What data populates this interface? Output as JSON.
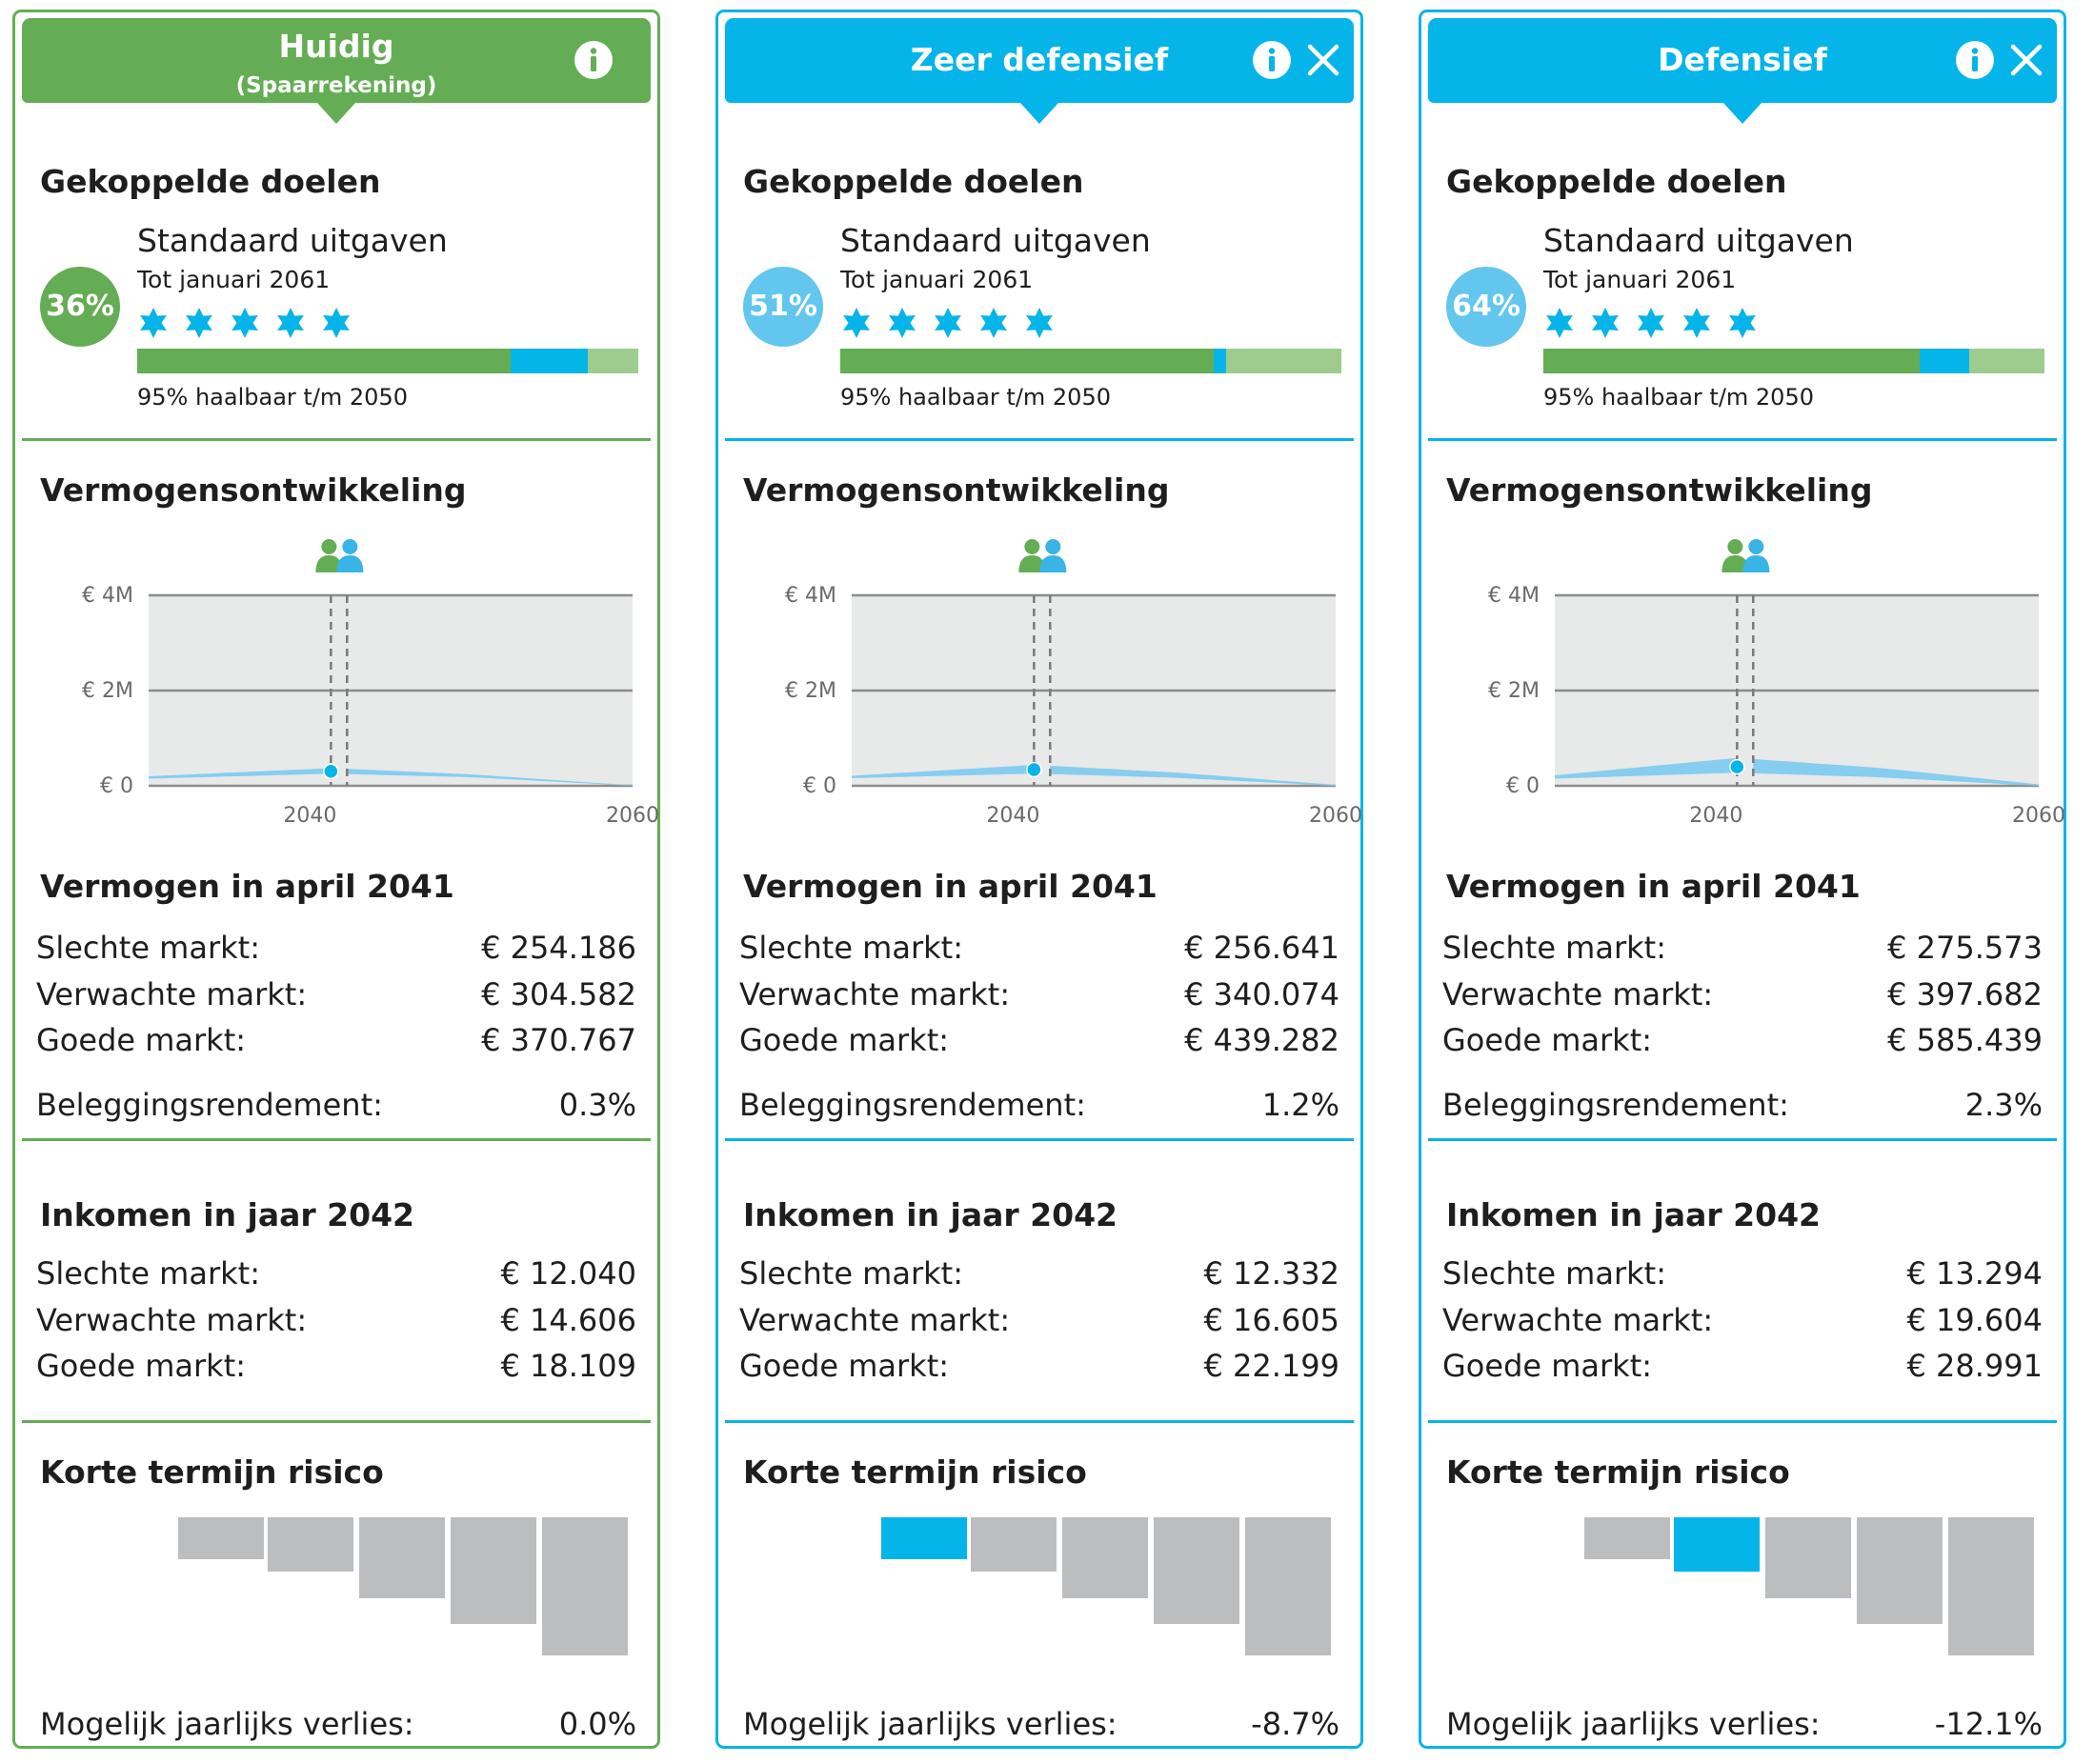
{
  "sections": {
    "goals_title": "Gekoppelde doelen",
    "wealth_title": "Vermogensontwikkeling",
    "risk_title": "Korte termijn risico"
  },
  "colors": {
    "green": "#64ad54",
    "blue": "#05b4e8",
    "light_green": "#9dcc8e",
    "chart_band": "#86cdf0",
    "chart_bg": "#e8e9e9",
    "risk_bar": "#bcbdbe"
  },
  "chart_axis": {
    "y_ticks": [
      "€ 4M",
      "€ 2M",
      "€ 0"
    ],
    "x_ticks": [
      "2040",
      "2060"
    ]
  },
  "cards": [
    {
      "title": "Huidig",
      "subtitle": "(Spaarrekening)",
      "theme": "green",
      "icons": [
        "info-icon"
      ],
      "goal": {
        "percent": "36%",
        "name": "Standaard uitgaven",
        "date": "Tot januari 2061",
        "stars": 5,
        "bar": {
          "green": 0.745,
          "blue": 0.155
        },
        "feasible": "95% haalbaar t/m 2050"
      },
      "chart_data": {
        "type": "area",
        "ylim": [
          0,
          4000000
        ],
        "xlim": [
          2030,
          2060
        ],
        "y_ticks": [
          "€ 4M",
          "€ 2M",
          "€ 0"
        ],
        "x_ticks": [
          "2040",
          "2060"
        ],
        "marker_x": 2041.3,
        "marker2_x": 2042.3,
        "marker_value": 304582,
        "band": [
          {
            "x": 2030,
            "lo": 150000,
            "hi": 200000
          },
          {
            "x": 2041.3,
            "lo": 254186,
            "hi": 370767
          },
          {
            "x": 2050,
            "lo": 180000,
            "hi": 240000
          },
          {
            "x": 2060,
            "lo": 0,
            "hi": 10000
          }
        ]
      },
      "wealth": {
        "title": "Vermogen in april 2041",
        "rows": [
          {
            "label": "Slechte markt:",
            "value": "€ 254.186"
          },
          {
            "label": "Verwachte markt:",
            "value": "€ 304.582"
          },
          {
            "label": "Goede markt:",
            "value": "€ 370.767"
          }
        ],
        "return_label": "Beleggingsrendement:",
        "return_value": "0.3%"
      },
      "income": {
        "title": "Inkomen in jaar 2042",
        "rows": [
          {
            "label": "Slechte markt:",
            "value": "€ 12.040"
          },
          {
            "label": "Verwachte markt:",
            "value": "€ 14.606"
          },
          {
            "label": "Goede markt:",
            "value": "€ 18.109"
          }
        ]
      },
      "risk": {
        "selected_index": -1,
        "loss_label": "Mogelijk jaarlijks verlies:",
        "loss_value": "0.0%"
      }
    },
    {
      "title": "Zeer defensief",
      "subtitle": "",
      "theme": "blue",
      "icons": [
        "info-icon",
        "close-icon"
      ],
      "goal": {
        "percent": "51%",
        "name": "Standaard uitgaven",
        "date": "Tot januari 2061",
        "stars": 5,
        "bar": {
          "green": 0.745,
          "blue": 0.025
        },
        "feasible": "95% haalbaar t/m 2050"
      },
      "chart_data": {
        "type": "area",
        "ylim": [
          0,
          4000000
        ],
        "xlim": [
          2030,
          2060
        ],
        "y_ticks": [
          "€ 4M",
          "€ 2M",
          "€ 0"
        ],
        "x_ticks": [
          "2040",
          "2060"
        ],
        "marker_x": 2041.3,
        "marker2_x": 2042.3,
        "marker_value": 340074,
        "band": [
          {
            "x": 2030,
            "lo": 160000,
            "hi": 210000
          },
          {
            "x": 2041.3,
            "lo": 256641,
            "hi": 439282
          },
          {
            "x": 2050,
            "lo": 170000,
            "hi": 280000
          },
          {
            "x": 2060,
            "lo": 0,
            "hi": 20000
          }
        ]
      },
      "wealth": {
        "title": "Vermogen in april 2041",
        "rows": [
          {
            "label": "Slechte markt:",
            "value": "€ 256.641"
          },
          {
            "label": "Verwachte markt:",
            "value": "€ 340.074"
          },
          {
            "label": "Goede markt:",
            "value": "€ 439.282"
          }
        ],
        "return_label": "Beleggingsrendement:",
        "return_value": "1.2%"
      },
      "income": {
        "title": "Inkomen in jaar 2042",
        "rows": [
          {
            "label": "Slechte markt:",
            "value": "€ 12.332"
          },
          {
            "label": "Verwachte markt:",
            "value": "€ 16.605"
          },
          {
            "label": "Goede markt:",
            "value": "€ 22.199"
          }
        ]
      },
      "risk": {
        "selected_index": 0,
        "loss_label": "Mogelijk jaarlijks verlies:",
        "loss_value": "-8.7%"
      }
    },
    {
      "title": "Defensief",
      "subtitle": "",
      "theme": "blue",
      "icons": [
        "info-icon",
        "close-icon"
      ],
      "goal": {
        "percent": "64%",
        "name": "Standaard uitgaven",
        "date": "Tot januari 2061",
        "stars": 5,
        "bar": {
          "green": 0.75,
          "blue": 0.1
        },
        "feasible": "95% haalbaar t/m 2050"
      },
      "chart_data": {
        "type": "area",
        "ylim": [
          0,
          4000000
        ],
        "xlim": [
          2030,
          2060
        ],
        "y_ticks": [
          "€ 4M",
          "€ 2M",
          "€ 0"
        ],
        "x_ticks": [
          "2040",
          "2060"
        ],
        "marker_x": 2041.3,
        "marker2_x": 2042.3,
        "marker_value": 397682,
        "band": [
          {
            "x": 2030,
            "lo": 150000,
            "hi": 220000
          },
          {
            "x": 2041.3,
            "lo": 275573,
            "hi": 585439
          },
          {
            "x": 2050,
            "lo": 180000,
            "hi": 380000
          },
          {
            "x": 2060,
            "lo": 0,
            "hi": 30000
          }
        ]
      },
      "wealth": {
        "title": "Vermogen in april 2041",
        "rows": [
          {
            "label": "Slechte markt:",
            "value": "€ 275.573"
          },
          {
            "label": "Verwachte markt:",
            "value": "€ 397.682"
          },
          {
            "label": "Goede markt:",
            "value": "€ 585.439"
          }
        ],
        "return_label": "Beleggingsrendement:",
        "return_value": "2.3%"
      },
      "income": {
        "title": "Inkomen in jaar 2042",
        "rows": [
          {
            "label": "Slechte markt:",
            "value": "€ 13.294"
          },
          {
            "label": "Verwachte markt:",
            "value": "€ 19.604"
          },
          {
            "label": "Goede markt:",
            "value": "€ 28.991"
          }
        ]
      },
      "risk": {
        "selected_index": 1,
        "loss_label": "Mogelijk jaarlijks verlies:",
        "loss_value": "-12.1%"
      }
    }
  ]
}
